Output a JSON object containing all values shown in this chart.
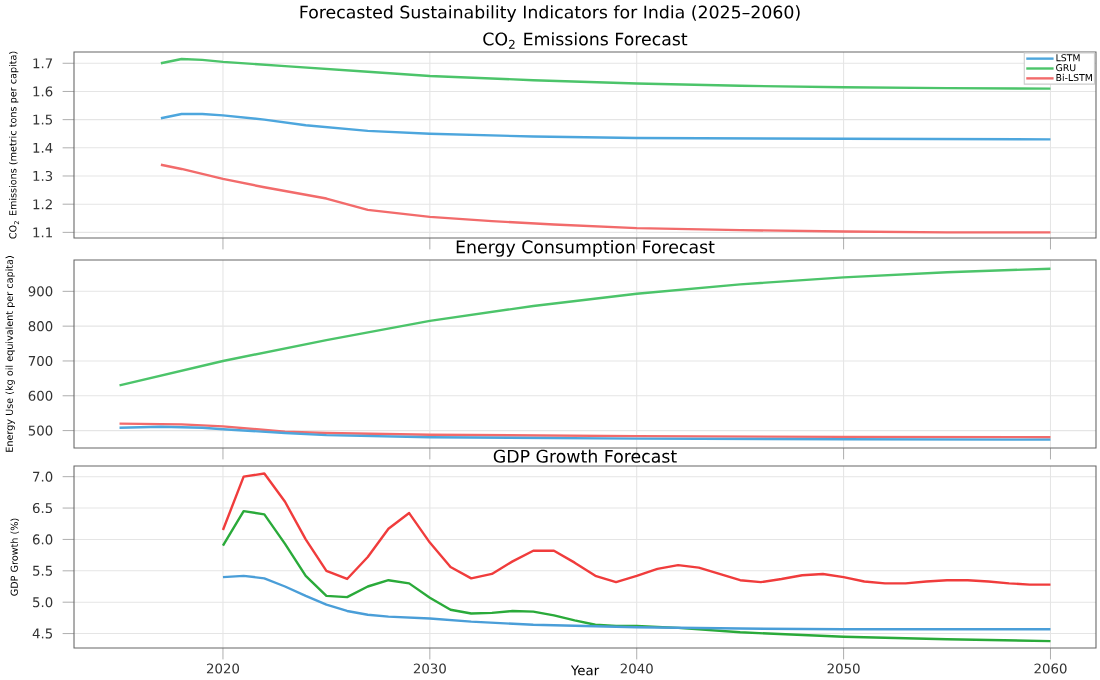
{
  "chart_data": [
    {
      "type": "line",
      "title": "Forecasted Sustainability Indicators for India (2025–2060)",
      "subtitle": "CO$_{2}$ Emissions Forecast",
      "ylabel": "CO$_{2}$ Emissions (metric tons per capita)",
      "xlim": [
        2012.8,
        2062.2
      ],
      "ylim": [
        1.08,
        1.74
      ],
      "xticks": [
        2020,
        2030,
        2040,
        2050,
        2060
      ],
      "yticks": [
        1.1,
        1.2,
        1.3,
        1.4,
        1.5,
        1.6,
        1.7
      ],
      "tick_labels": "y",
      "grid": true,
      "legend": "top right",
      "series": [
        {
          "name": "LSTM",
          "color": "#4da6dd",
          "x": [
            2017,
            2018,
            2019,
            2020,
            2022,
            2024,
            2027,
            2030,
            2035,
            2040,
            2050,
            2060
          ],
          "values": [
            1.505,
            1.52,
            1.52,
            1.515,
            1.5,
            1.48,
            1.46,
            1.45,
            1.44,
            1.435,
            1.432,
            1.43
          ]
        },
        {
          "name": "GRU",
          "color": "#4cc46a",
          "x": [
            2017,
            2018,
            2019,
            2020,
            2023,
            2027,
            2030,
            2035,
            2040,
            2045,
            2050,
            2055,
            2060
          ],
          "values": [
            1.7,
            1.715,
            1.712,
            1.705,
            1.69,
            1.67,
            1.655,
            1.64,
            1.628,
            1.62,
            1.615,
            1.612,
            1.61
          ]
        },
        {
          "name": "Bi-LSTM",
          "color": "#f26b6b",
          "x": [
            2017,
            2018,
            2020,
            2022,
            2025,
            2027,
            2030,
            2033,
            2036,
            2040,
            2045,
            2050,
            2055,
            2060
          ],
          "values": [
            1.34,
            1.325,
            1.29,
            1.26,
            1.22,
            1.18,
            1.155,
            1.14,
            1.128,
            1.115,
            1.108,
            1.103,
            1.1,
            1.1
          ]
        }
      ]
    },
    {
      "type": "line",
      "title": "Energy Consumption Forecast",
      "ylabel": "Energy Use (kg oil equivalent per capita)",
      "xlim": [
        2012.8,
        2062.2
      ],
      "ylim": [
        450,
        990
      ],
      "xticks": [
        2020,
        2030,
        2040,
        2050,
        2060
      ],
      "yticks": [
        500,
        600,
        700,
        800,
        900
      ],
      "tick_labels": "y",
      "grid": true,
      "series": [
        {
          "color": "#4cc46a",
          "x": [
            2015,
            2020,
            2025,
            2030,
            2035,
            2040,
            2045,
            2050,
            2055,
            2060
          ],
          "values": [
            630,
            700,
            760,
            815,
            858,
            893,
            920,
            940,
            955,
            965
          ]
        },
        {
          "color": "#f26b6b",
          "x": [
            2015,
            2018,
            2020,
            2023,
            2025,
            2030,
            2040,
            2050,
            2060
          ],
          "values": [
            520,
            518,
            512,
            497,
            493,
            488,
            484,
            482,
            481
          ]
        },
        {
          "color": "#4da6dd",
          "x": [
            2015,
            2017,
            2019,
            2020,
            2023,
            2025,
            2030,
            2040,
            2050,
            2060
          ],
          "values": [
            508,
            511,
            508,
            504,
            493,
            487,
            481,
            477,
            475,
            474
          ]
        }
      ]
    },
    {
      "type": "line",
      "title": "GDP Growth Forecast",
      "xlabel": "Year",
      "ylabel": "GDP Growth (%)",
      "xlim": [
        2012.8,
        2062.2
      ],
      "ylim": [
        4.27,
        7.17
      ],
      "xticks": [
        2020,
        2030,
        2040,
        2050,
        2060
      ],
      "yticks": [
        4.5,
        {
          "value": 5,
          "label": "5.0"
        },
        5.5,
        {
          "value": 6,
          "label": "6.0"
        },
        6.5,
        {
          "value": 7,
          "label": "7.0"
        }
      ],
      "grid": true,
      "series": [
        {
          "color": "#f03c3c",
          "x": [
            2020,
            2021,
            2022,
            2023,
            2024,
            2025,
            2026,
            2027,
            2028,
            2029,
            2030,
            2031,
            2032,
            2033,
            2034,
            2035,
            2036,
            2037,
            2038,
            2039,
            2040,
            2041,
            2042,
            2043,
            2044,
            2045,
            2046,
            2047,
            2048,
            2049,
            2050,
            2051,
            2052,
            2053,
            2054,
            2055,
            2056,
            2057,
            2058,
            2059,
            2060
          ],
          "values": [
            6.15,
            7.0,
            7.05,
            6.6,
            6.0,
            5.5,
            5.37,
            5.72,
            6.17,
            6.42,
            5.95,
            5.56,
            5.38,
            5.45,
            5.65,
            5.82,
            5.82,
            5.63,
            5.42,
            5.32,
            5.42,
            5.53,
            5.59,
            5.55,
            5.45,
            5.35,
            5.32,
            5.37,
            5.43,
            5.45,
            5.4,
            5.33,
            5.3,
            5.3,
            5.33,
            5.35,
            5.35,
            5.33,
            5.3,
            5.28,
            5.28
          ]
        },
        {
          "color": "#2aaa3a",
          "x": [
            2020,
            2021,
            2022,
            2023,
            2024,
            2025,
            2026,
            2027,
            2028,
            2029,
            2030,
            2031,
            2032,
            2033,
            2034,
            2035,
            2036,
            2037,
            2038,
            2039,
            2040,
            2042,
            2045,
            2050,
            2055,
            2060
          ],
          "values": [
            5.9,
            6.45,
            6.4,
            5.93,
            5.42,
            5.1,
            5.08,
            5.25,
            5.35,
            5.3,
            5.07,
            4.88,
            4.82,
            4.83,
            4.86,
            4.85,
            4.79,
            4.71,
            4.64,
            4.62,
            4.62,
            4.59,
            4.52,
            4.45,
            4.41,
            4.38
          ]
        },
        {
          "color": "#4a9ed8",
          "x": [
            2020,
            2021,
            2022,
            2023,
            2024,
            2025,
            2026,
            2027,
            2028,
            2030,
            2032,
            2035,
            2040,
            2045,
            2050,
            2060
          ],
          "values": [
            5.4,
            5.42,
            5.38,
            5.25,
            5.1,
            4.96,
            4.86,
            4.8,
            4.77,
            4.74,
            4.69,
            4.64,
            4.6,
            4.58,
            4.57,
            4.57
          ]
        }
      ]
    }
  ]
}
